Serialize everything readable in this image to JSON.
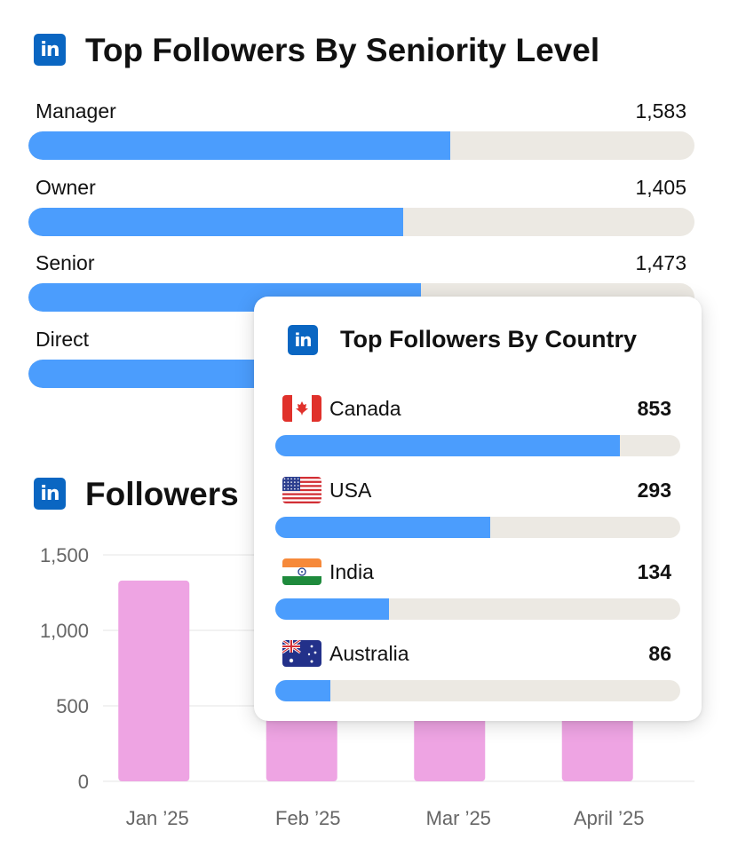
{
  "seniority": {
    "title": "Top Followers By Seniority Level",
    "max": 2500,
    "rows": [
      {
        "label": "Manager",
        "value": 1583,
        "display": "1,583"
      },
      {
        "label": "Owner",
        "value": 1405,
        "display": "1,405"
      },
      {
        "label": "Senior",
        "value": 1473,
        "display": "1,473"
      },
      {
        "label": "Direct",
        "value": 1300,
        "display": ""
      }
    ]
  },
  "followers": {
    "title": "Followers"
  },
  "country": {
    "title": "Top Followers By Country",
    "rows": [
      {
        "label": "Canada",
        "value": 853,
        "display": "853",
        "flag": "canada-flag-icon",
        "fraction": 0.85
      },
      {
        "label": "USA",
        "value": 293,
        "display": "293",
        "flag": "usa-flag-icon",
        "fraction": 0.53
      },
      {
        "label": "India",
        "value": 134,
        "display": "134",
        "flag": "india-flag-icon",
        "fraction": 0.28
      },
      {
        "label": "Australia",
        "value": 86,
        "display": "86",
        "flag": "australia-flag-icon",
        "fraction": 0.135
      }
    ]
  },
  "logo": {
    "text": "in",
    "color": "#0a66c2"
  },
  "colors": {
    "bar_blue": "#4b9dfd",
    "track": "#ece9e3",
    "chart_bar": "#eea4e3"
  },
  "chart_data": {
    "type": "bar",
    "categories": [
      "Jan ’25",
      "Feb ’25",
      "Mar ’25",
      "April ’25"
    ],
    "values": [
      1330,
      450,
      450,
      450
    ],
    "ylim": [
      0,
      1500
    ],
    "yticks": [
      0,
      500,
      1000,
      1500
    ],
    "ytick_labels": [
      "0",
      "500",
      "1,000",
      "1,500"
    ],
    "grid": true,
    "title": "",
    "xlabel": "",
    "ylabel": ""
  }
}
